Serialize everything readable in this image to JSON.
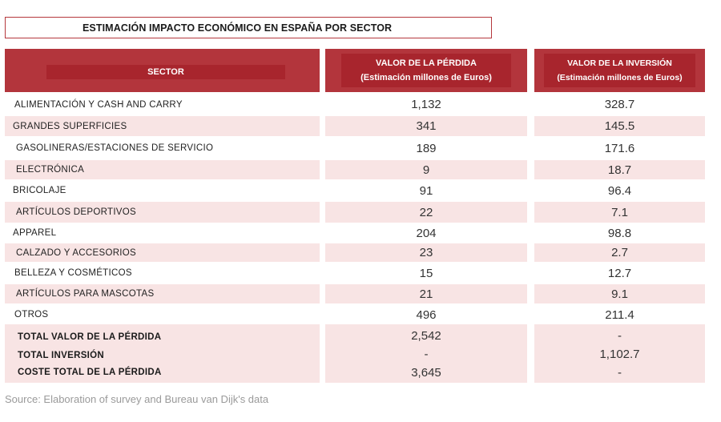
{
  "title": "ESTIMACIÓN IMPACTO ECONÓMICO EN ESPAÑA POR SECTOR",
  "headers": {
    "sector": "SECTOR",
    "loss_line1": "VALOR DE LA PÉRDIDA",
    "loss_line2": "(Estimación millones de Euros)",
    "inv_line1": "VALOR DE LA INVERSIÓN",
    "inv_line2": "(Estimación millones de Euros)"
  },
  "rows": [
    {
      "sector": "ALIMENTACIÓN Y CASH AND CARRY",
      "loss": "1,132",
      "inv": "328.7"
    },
    {
      "sector": "GRANDES SUPERFICIES",
      "loss": "341",
      "inv": "145.5"
    },
    {
      "sector": "GASOLINERAS/ESTACIONES DE SERVICIO",
      "loss": "189",
      "inv": "171.6"
    },
    {
      "sector": "ELECTRÓNICA",
      "loss": "9",
      "inv": "18.7"
    },
    {
      "sector": "BRICOLAJE",
      "loss": "91",
      "inv": "96.4"
    },
    {
      "sector": "ARTÍCULOS DEPORTIVOS",
      "loss": "22",
      "inv": "7.1"
    },
    {
      "sector": "APPAREL",
      "loss": "204",
      "inv": "98.8"
    },
    {
      "sector": "CALZADO Y ACCESORIOS",
      "loss": "23",
      "inv": "2.7"
    },
    {
      "sector": "BELLEZA Y COSMÉTICOS",
      "loss": "15",
      "inv": "12.7"
    },
    {
      "sector": "ARTÍCULOS PARA MASCOTAS",
      "loss": "21",
      "inv": "9.1"
    },
    {
      "sector": "OTROS",
      "loss": "496",
      "inv": "211.4"
    }
  ],
  "totals": [
    {
      "label": "TOTAL VALOR DE LA PÉRDIDA",
      "loss": "2,542",
      "inv": "-"
    },
    {
      "label": "TOTAL INVERSIÓN",
      "loss": "-",
      "inv": "1,102.7"
    },
    {
      "label": "COSTE TOTAL DE LA PÉRDIDA",
      "loss": "3,645",
      "inv": "-"
    }
  ],
  "source": "Source: Elaboration of survey and Bureau van Dijk's data",
  "colors": {
    "header_red": "#b3353c",
    "header_inner": "#a8252d",
    "row_shade": "#f8e4e4",
    "title_border": "#b5383d"
  },
  "chart_data": {
    "type": "table",
    "title": "ESTIMACIÓN IMPACTO ECONÓMICO EN ESPAÑA POR SECTOR",
    "columns": [
      "SECTOR",
      "VALOR DE LA PÉRDIDA (Estimación millones de Euros)",
      "VALOR DE LA INVERSIÓN (Estimación millones de Euros)"
    ],
    "categories": [
      "ALIMENTACIÓN Y CASH AND CARRY",
      "GRANDES SUPERFICIES",
      "GASOLINERAS/ESTACIONES DE SERVICIO",
      "ELECTRÓNICA",
      "BRICOLAJE",
      "ARTÍCULOS DEPORTIVOS",
      "APPAREL",
      "CALZADO Y ACCESORIOS",
      "BELLEZA Y COSMÉTICOS",
      "ARTÍCULOS PARA MASCOTAS",
      "OTROS"
    ],
    "series": [
      {
        "name": "VALOR DE LA PÉRDIDA",
        "values": [
          1132,
          341,
          189,
          9,
          91,
          22,
          204,
          23,
          15,
          21,
          496
        ]
      },
      {
        "name": "VALOR DE LA INVERSIÓN",
        "values": [
          328.7,
          145.5,
          171.6,
          18.7,
          96.4,
          7.1,
          98.8,
          2.7,
          12.7,
          9.1,
          211.4
        ]
      }
    ],
    "totals": {
      "TOTAL VALOR DE LA PÉRDIDA": [
        2542,
        null
      ],
      "TOTAL INVERSIÓN": [
        null,
        1102.7
      ],
      "COSTE TOTAL DE LA PÉRDIDA": [
        3645,
        null
      ]
    }
  }
}
